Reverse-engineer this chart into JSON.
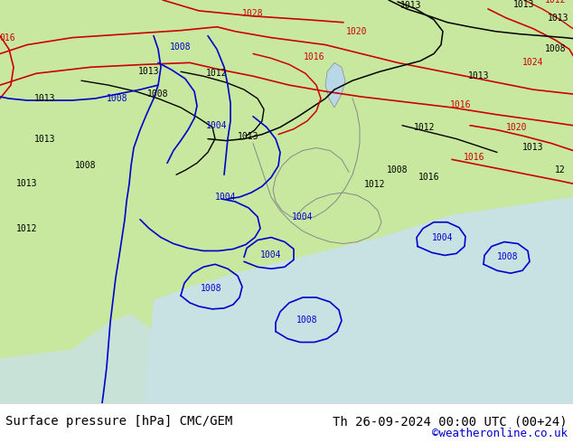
{
  "title_left": "Surface pressure [hPa] CMC/GEM",
  "title_right": "Th 26-09-2024 00:00 UTC (00+24)",
  "credit": "©weatheronline.co.uk",
  "bg_color": "#b0d090",
  "land_color": "#c8e8a0",
  "sea_color": "#d0e8f0",
  "fig_bg": "#ffffff",
  "footer_bg": "#ffffff",
  "red_contour_color": "#cc0000",
  "blue_contour_color": "#0000cc",
  "black_contour_color": "#000000",
  "gray_contour_color": "#888888",
  "text_color": "#000000",
  "credit_color": "#0000cc",
  "font_size_footer": 10,
  "font_size_credit": 9
}
